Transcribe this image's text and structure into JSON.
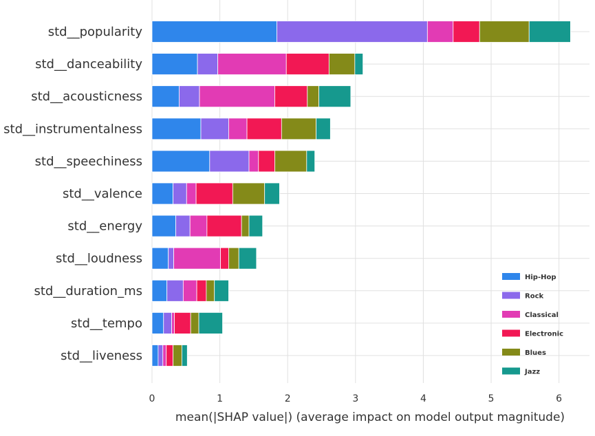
{
  "chart_data": {
    "type": "bar",
    "orientation": "horizontal",
    "stacked": true,
    "xlabel": "mean(|SHAP value|) (average impact on model output magnitude)",
    "xlim": [
      0,
      6.45
    ],
    "xticks": [
      0,
      1,
      2,
      3,
      4,
      5,
      6
    ],
    "grid": true,
    "legend_position": "bottom-right",
    "categories": [
      "std__popularity",
      "std__danceability",
      "std__acousticness",
      "std__instrumentalness",
      "std__speechiness",
      "std__valence",
      "std__energy",
      "std__loudness",
      "std__duration_ms",
      "std__tempo",
      "std__liveness"
    ],
    "series": [
      {
        "name": "Hip-Hop",
        "color": "#2f86eb",
        "values": [
          1.84,
          0.67,
          0.4,
          0.72,
          0.85,
          0.31,
          0.35,
          0.24,
          0.22,
          0.17,
          0.09
        ]
      },
      {
        "name": "Rock",
        "color": "#8b69eb",
        "values": [
          2.22,
          0.3,
          0.3,
          0.41,
          0.58,
          0.2,
          0.21,
          0.08,
          0.24,
          0.12,
          0.07
        ]
      },
      {
        "name": "Classical",
        "color": "#e23bb4",
        "values": [
          0.38,
          1.01,
          1.11,
          0.27,
          0.14,
          0.14,
          0.25,
          0.69,
          0.2,
          0.04,
          0.05
        ]
      },
      {
        "name": "Electronic",
        "color": "#f21854",
        "values": [
          0.39,
          0.63,
          0.48,
          0.51,
          0.24,
          0.54,
          0.51,
          0.12,
          0.14,
          0.24,
          0.1
        ]
      },
      {
        "name": "Blues",
        "color": "#848a19",
        "values": [
          0.73,
          0.38,
          0.17,
          0.51,
          0.47,
          0.47,
          0.11,
          0.15,
          0.12,
          0.12,
          0.13
        ]
      },
      {
        "name": "Jazz",
        "color": "#16998e",
        "values": [
          0.61,
          0.12,
          0.47,
          0.21,
          0.12,
          0.22,
          0.2,
          0.26,
          0.21,
          0.35,
          0.08
        ]
      }
    ]
  }
}
